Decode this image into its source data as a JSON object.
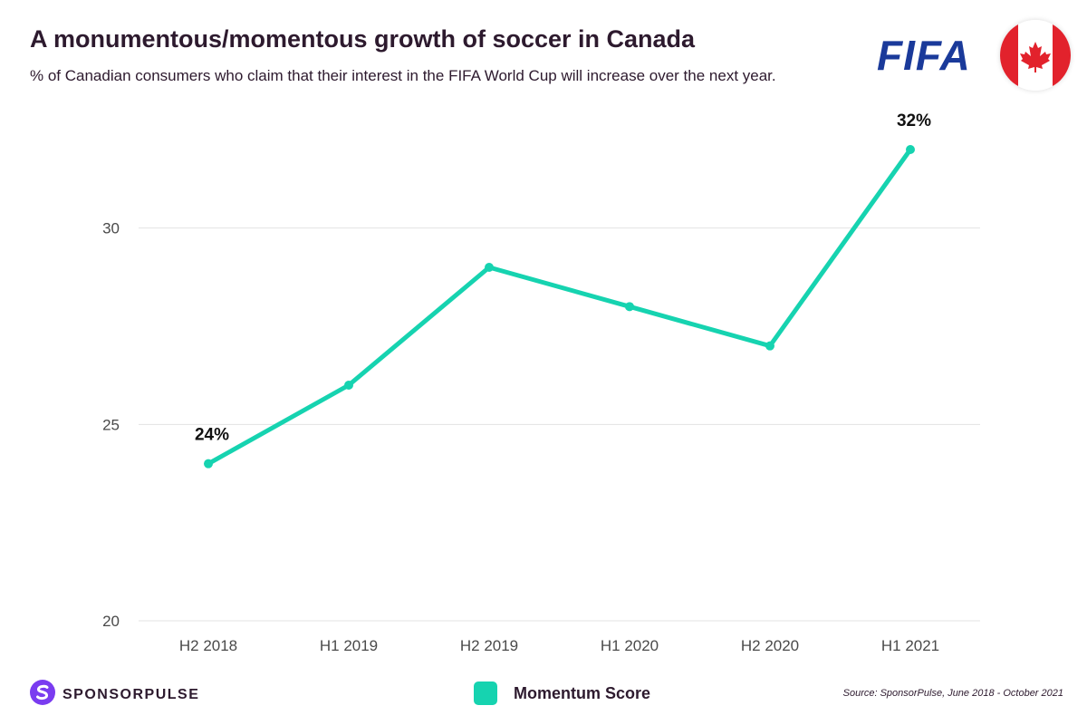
{
  "header": {
    "title": "A monumentous/momentous growth of soccer in Canada",
    "subtitle": "% of Canadian consumers who claim that their interest in the FIFA World Cup will increase over the next year.",
    "logo_text": "FIFA"
  },
  "footer": {
    "brand_name": "SPONSORPULSE",
    "source": "Source: SponsorPulse, June 2018 - October 2021"
  },
  "colors": {
    "line": "#16d3b0",
    "grid": "#e3e3e3",
    "text": "#2d1a2e",
    "fifa_blue": "#1a3a9a",
    "flag_red": "#e2222c",
    "brand_purple": "#7a3cf0"
  },
  "chart_data": {
    "type": "line",
    "categories": [
      "H2 2018",
      "H1 2019",
      "H2 2019",
      "H1 2020",
      "H2 2020",
      "H1 2021"
    ],
    "series": [
      {
        "name": "Momentum Score",
        "values": [
          24,
          26,
          29,
          28,
          27,
          32
        ]
      }
    ],
    "data_labels": [
      {
        "index": 0,
        "text": "24%"
      },
      {
        "index": 5,
        "text": "32%"
      }
    ],
    "yticks": [
      20,
      25,
      30
    ],
    "ylim": [
      20,
      33.5
    ],
    "grid": true,
    "legend_position": "bottom-center"
  }
}
